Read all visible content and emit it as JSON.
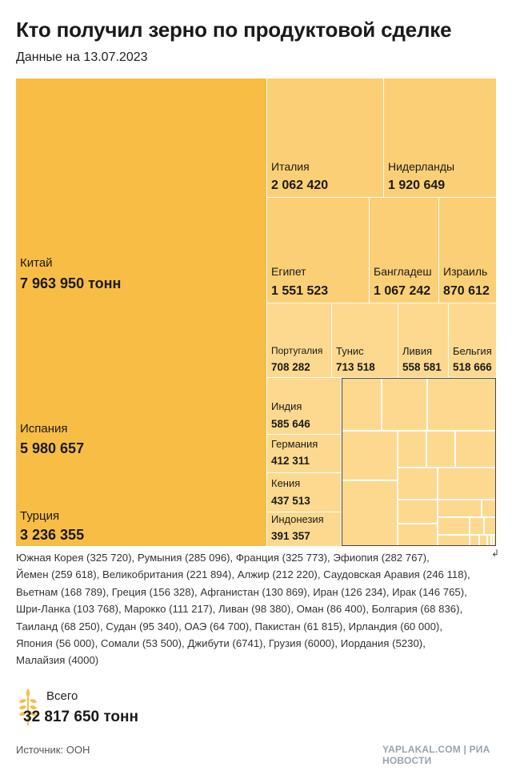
{
  "title": "Кто получил зерно по продуктовой сделке",
  "subtitle": "Данные на 13.07.2023",
  "chart_data": {
    "type": "treemap",
    "unit": "тонн",
    "items": [
      {
        "name": "Китай",
        "label": "7 963 950 тонн",
        "value": 7963950
      },
      {
        "name": "Испания",
        "label": "5 980 657",
        "value": 5980657
      },
      {
        "name": "Турция",
        "label": "3 236 355",
        "value": 3236355
      },
      {
        "name": "Италия",
        "label": "2 062 420",
        "value": 2062420
      },
      {
        "name": "Нидерланды",
        "label": "1 920 649",
        "value": 1920649
      },
      {
        "name": "Египет",
        "label": "1 551 523",
        "value": 1551523
      },
      {
        "name": "Бангладеш",
        "label": "1 067 242",
        "value": 1067242
      },
      {
        "name": "Израиль",
        "label": "870 612",
        "value": 870612
      },
      {
        "name": "Португалия",
        "label": "708 282",
        "value": 708282
      },
      {
        "name": "Тунис",
        "label": "713 518",
        "value": 713518
      },
      {
        "name": "Ливия",
        "label": "558 581",
        "value": 558581
      },
      {
        "name": "Бельгия",
        "label": "518 666",
        "value": 518666
      },
      {
        "name": "Индия",
        "label": "585 646",
        "value": 585646
      },
      {
        "name": "Германия",
        "label": "412 311",
        "value": 412311
      },
      {
        "name": "Кения",
        "label": "437 513",
        "value": 437513
      },
      {
        "name": "Индонезия",
        "label": "391 357",
        "value": 391357
      }
    ],
    "others": [
      {
        "name": "Южная Корея",
        "value": 325720
      },
      {
        "name": "Румыния",
        "value": 285096
      },
      {
        "name": "Франция",
        "value": 325773
      },
      {
        "name": "Эфиопия",
        "value": 282767
      },
      {
        "name": "Йемен",
        "value": 259618
      },
      {
        "name": "Великобритания",
        "value": 221894
      },
      {
        "name": "Алжир",
        "value": 212220
      },
      {
        "name": "Саудовская Аравия",
        "value": 246118
      },
      {
        "name": "Вьетнам",
        "value": 168789
      },
      {
        "name": "Греция",
        "value": 156328
      },
      {
        "name": "Афганистан",
        "value": 130869
      },
      {
        "name": "Иран",
        "value": 126234
      },
      {
        "name": "Ирак",
        "value": 146765
      },
      {
        "name": "Шри-Ланка",
        "value": 103768
      },
      {
        "name": "Марокко",
        "value": 111217
      },
      {
        "name": "Ливан",
        "value": 98380
      },
      {
        "name": "Оман",
        "value": 86400
      },
      {
        "name": "Болгария",
        "value": 68836
      },
      {
        "name": "Таиланд",
        "value": 68250
      },
      {
        "name": "Судан",
        "value": 95340
      },
      {
        "name": "ОАЭ",
        "value": 64700
      },
      {
        "name": "Пакистан",
        "value": 61815
      },
      {
        "name": "Ирландия",
        "value": 60000
      },
      {
        "name": "Япония",
        "value": 56000
      },
      {
        "name": "Сомали",
        "value": 53500
      },
      {
        "name": "Джибути",
        "value": 6741
      },
      {
        "name": "Грузия",
        "value": 6000
      },
      {
        "name": "Иордания",
        "value": 5230
      },
      {
        "name": "Малайзия",
        "value": 4000
      }
    ],
    "others_text": [
      "Южная Корея (325 720)",
      "Румыния (285 096)",
      "Франция (325 773)",
      "Эфиопия (282 767)",
      "Йемен (259 618)",
      "Великобритания (221 894)",
      "Алжир (212 220)",
      "Саудовская Аравия (246 118)",
      "Вьетнам (168 789)",
      "Греция (156 328)",
      "Афганистан (130 869)",
      "Иран (126 234)",
      "Ирак (146 765)",
      "Шри-Ланка (103 768)",
      "Марокко (111 217)",
      "Ливан (98 380)",
      "Оман (86 400)",
      "Болгария (68 836)",
      "Таиланд (68 250)",
      "Судан (95 340)",
      "ОАЭ (64 700)",
      "Пакистан (61 815)",
      "Ирландия (60 000)",
      "Япония (56 000)",
      "Сомали (53 500)",
      "Джибути (6741)",
      "Грузия (6000)",
      "Иордания (5230)",
      "Малайзия (4000)"
    ],
    "colors": {
      "major": "#f7bd45",
      "medium": "#fbcf75",
      "minor": "#fcd98f"
    }
  },
  "total": {
    "label": "Всего",
    "value": "32 817 650 тонн"
  },
  "source": "Источник: ООН",
  "watermark": "YAPLAKAL.COM | РИА НОВОСТИ"
}
